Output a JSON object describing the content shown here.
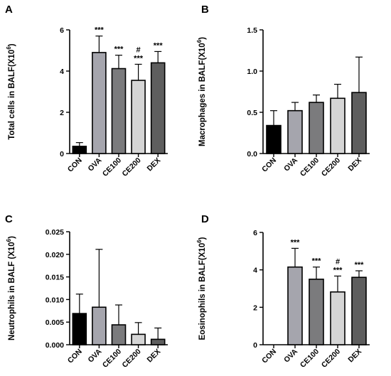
{
  "charts": [
    {
      "panel": "A",
      "chart_data": {
        "type": "bar",
        "title": "",
        "xlabel": "",
        "ylabel": "Total cells in BALF(X10",
        "ylabel_sup": "6",
        "ylabel_close": ")",
        "categories": [
          "CON",
          "OVA",
          "CE100",
          "CE200",
          "DEX"
        ],
        "values": [
          0.35,
          4.9,
          4.12,
          3.55,
          4.4
        ],
        "errors": [
          0.18,
          0.8,
          0.65,
          0.78,
          0.55
        ],
        "ylim": [
          0,
          6
        ],
        "yticks": [
          0,
          2,
          4,
          6
        ],
        "ytick_labels": [
          "0",
          "2",
          "4",
          "6"
        ],
        "annotations": [
          "",
          "***",
          "***",
          "#\n***",
          "***"
        ],
        "grid": false
      }
    },
    {
      "panel": "B",
      "chart_data": {
        "type": "bar",
        "title": "",
        "xlabel": "",
        "ylabel": "Macrophages in BALF(X10",
        "ylabel_sup": "6",
        "ylabel_close": ")",
        "categories": [
          "CON",
          "OVA",
          "CE100",
          "CE200",
          "DEX"
        ],
        "values": [
          0.34,
          0.52,
          0.62,
          0.67,
          0.74
        ],
        "errors": [
          0.18,
          0.1,
          0.09,
          0.17,
          0.43
        ],
        "ylim": [
          0,
          1.5
        ],
        "yticks": [
          0,
          0.5,
          1.0,
          1.5
        ],
        "ytick_labels": [
          "0.0",
          "0.5",
          "1.0",
          "1.5"
        ],
        "annotations": [
          "",
          "",
          "",
          "",
          ""
        ],
        "grid": false
      }
    },
    {
      "panel": "C",
      "chart_data": {
        "type": "bar",
        "title": "",
        "xlabel": "",
        "ylabel": "Neutrophils in BALF (X10",
        "ylabel_sup": "6",
        "ylabel_close": ")",
        "categories": [
          "CON",
          "OVA",
          "CE100",
          "CE200",
          "DEX"
        ],
        "values": [
          0.0069,
          0.0083,
          0.0044,
          0.0023,
          0.0012
        ],
        "errors": [
          0.0043,
          0.0128,
          0.0044,
          0.0026,
          0.0025
        ],
        "ylim": [
          0,
          0.025
        ],
        "yticks": [
          0,
          0.005,
          0.01,
          0.015,
          0.02,
          0.025
        ],
        "ytick_labels": [
          "0.000",
          "0.005",
          "0.010",
          "0.015",
          "0.020",
          "0.025"
        ],
        "annotations": [
          "",
          "",
          "",
          "",
          ""
        ],
        "grid": false
      }
    },
    {
      "panel": "D",
      "chart_data": {
        "type": "bar",
        "title": "",
        "xlabel": "",
        "ylabel": "Eosinophils in BALF(X10",
        "ylabel_sup": "6",
        "ylabel_close": ")",
        "categories": [
          "CON",
          "OVA",
          "CE100",
          "CE200",
          "DEX"
        ],
        "values": [
          0,
          4.15,
          3.5,
          2.82,
          3.6
        ],
        "errors": [
          0,
          1.0,
          0.65,
          0.85,
          0.35
        ],
        "ylim": [
          0,
          6
        ],
        "yticks": [
          0,
          2,
          4,
          6
        ],
        "ytick_labels": [
          "0",
          "2",
          "4",
          "6"
        ],
        "annotations": [
          "",
          "***",
          "***",
          "#\n***",
          "***"
        ],
        "grid": false
      }
    }
  ],
  "colors": {
    "CON": "#000000",
    "OVA": "#a5a5ad",
    "CE100": "#7b7b7d",
    "CE200": "#d5d5d5",
    "DEX": "#5e5e5e"
  }
}
